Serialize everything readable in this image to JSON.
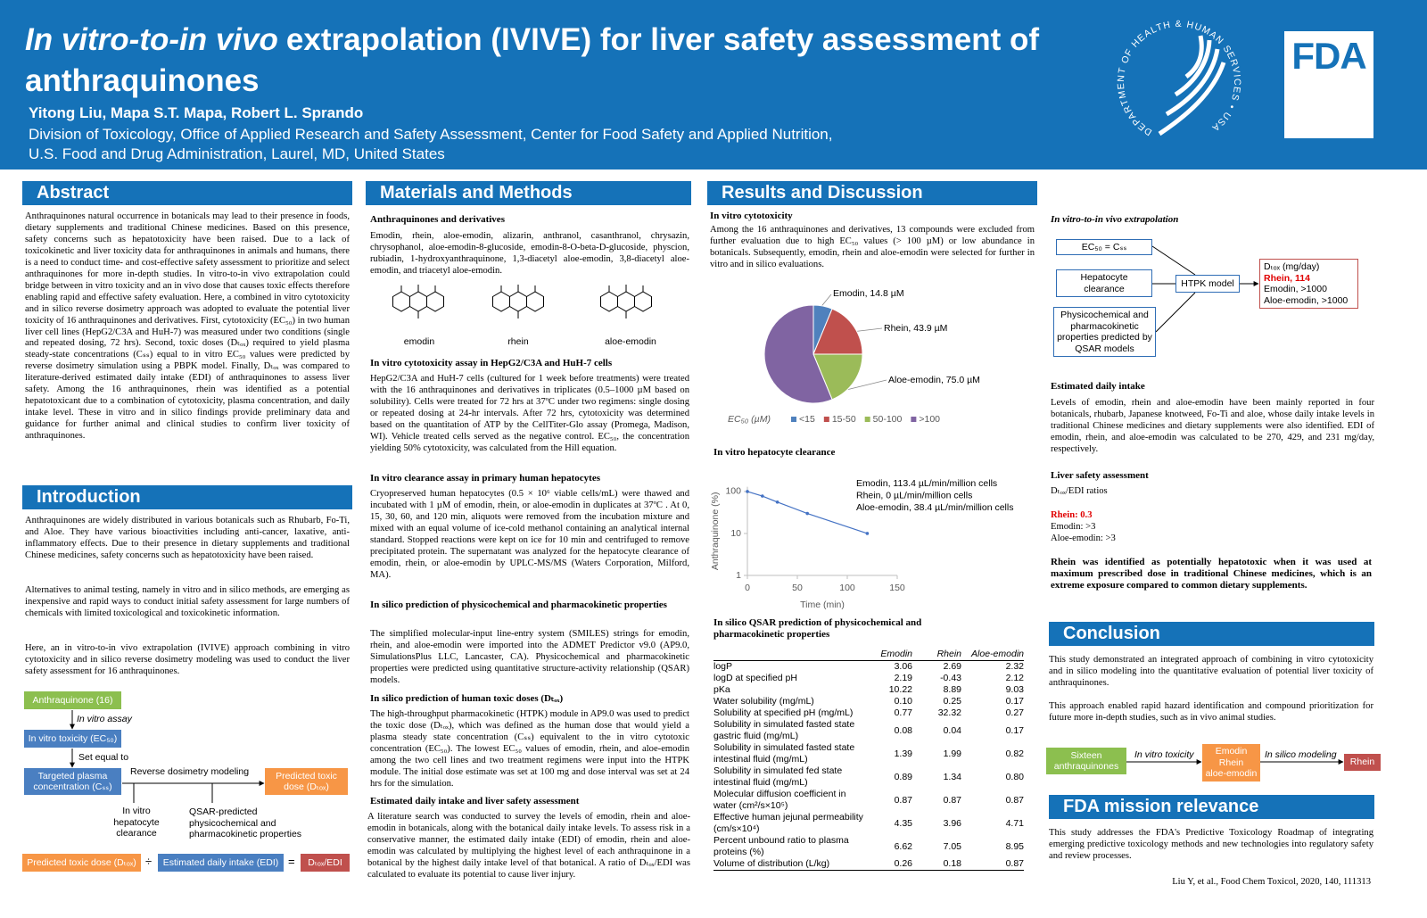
{
  "header": {
    "title_italic": "In vitro-to-in vivo",
    "title_rest": "extrapolation (IVIVE) for liver safety assessment of anthraquinones",
    "authors": "Yitong Liu, Mapa S.T. Mapa, Robert L. Sprando",
    "affiliation": [
      "Division of Toxicology, Office of Applied Research and Safety Assessment, Center for Food Safety and Applied Nutrition,",
      "U.S. Food and Drug Administration, Laurel, MD, United States"
    ],
    "seal_text": "DEPARTMENT OF HEALTH & HUMAN SERVICES • USA",
    "logo": "FDA"
  },
  "abstract": {
    "heading": "Abstract",
    "text": "Anthraquinones natural occurrence in botanicals may lead to their presence in foods, dietary supplements and traditional Chinese medicines. Based on this presence, safety concerns such as hepatotoxicity have been raised. Due to a lack of toxicokinetic and liver toxicity data for anthraquinones in animals and humans, there is a need to conduct time- and cost-effective safety assessment to prioritize and select anthraquinones for more in-depth studies. In vitro-to-in vivo extrapolation could bridge between in vitro toxicity and an in vivo dose that causes toxic effects therefore enabling rapid and effective safety evaluation. Here, a combined in vitro cytotoxicity and in silico reverse dosimetry approach was adopted to evaluate the potential liver toxicity of 16 anthraquinones and derivatives. First, cytotoxicity (EC₅₀) in two human liver cell lines (HepG2/C3A and HuH-7) was measured under two conditions (single and repeated dosing, 72 hrs). Second, toxic doses (Dₜₒₓ) required to yield plasma steady-state concentrations (Cₛₛ) equal to in vitro EC₅₀ values were predicted by reverse dosimetry simulation using a PBPK model. Finally, Dₜₒₓ was compared to literature-derived estimated daily intake (EDI) of anthraquinones to assess liver safety. Among the 16 anthraquinones, rhein was identified as a potential hepatotoxicant due to a combination of cytotoxicity, plasma concentration, and daily intake level. These in vitro and in silico findings provide preliminary data and guidance for further animal and clinical studies to confirm liver toxicity of anthraquinones."
  },
  "introduction": {
    "heading": "Introduction",
    "paragraphs": [
      "Anthraquinones are widely distributed in various botanicals such as Rhubarb, Fo-Ti, and Aloe. They have various bioactivities including anti-cancer, laxative, anti-inflammatory effects. Due to their presence in dietary supplements and traditional Chinese medicines, safety concerns such as hepatotoxicity have been raised.",
      "Alternatives to animal testing, namely in vitro and in silico methods, are emerging as inexpensive and rapid ways to conduct initial safety assessment for large numbers of chemicals with limited toxicological and toxicokinetic information.",
      "Here, an in vitro-to-in vivo extrapolation (IVIVE) approach combining in vitro cytotoxicity and in silico reverse dosimetry modeling was used to conduct the liver safety assessment for 16 anthraquinones."
    ]
  },
  "approach_diagram": {
    "anthraquinone": "Anthraquinone (16)",
    "in_vitro_assay": "In vitro assay",
    "in_vitro_toxicity": "In vitro toxicity (EC₅₀)",
    "set_equal_to": "Set equal to",
    "targeted_plasma": "Targeted plasma concentration (Cₛₛ)",
    "reverse_dosimetry": "Reverse dosimetry modeling",
    "predicted_toxic_dose": "Predicted toxic dose (Dₜₒₓ)",
    "hepatocyte_clearance": "In vitro hepatocyte clearance",
    "qsar_properties": "QSAR-predicted physicochemical and pharmacokinetic properties",
    "equation": [
      "Predicted toxic dose (Dₜₒₓ)",
      "÷",
      "Estimated daily intake (EDI)",
      "=",
      "Dₜₒₓ/EDI"
    ]
  },
  "methods": {
    "heading": "Materials and Methods",
    "structures": [
      "emodin",
      "rhein",
      "aloe-emodin"
    ],
    "sections": [
      {
        "heading": "Anthraquinones and derivatives",
        "text": "Emodin, rhein, aloe-emodin, alizarin, anthranol, casanthranol, chrysazin, chrysophanol, aloe-emodin-8-glucoside, emodin-8-O-beta-D-glucoside, physcion, rubiadin, 1-hydroxyanthraquinone, 1,3-diacetyl aloe-emodin, 3,8-diacetyl aloe-emodin, and triacetyl aloe-emodin."
      },
      {
        "heading": "In vitro cytotoxicity assay in HepG2/C3A and HuH-7 cells",
        "text": "HepG2/C3A and HuH-7 cells (cultured for 1 week before treatments) were treated with the 16 anthraquinones and derivatives in triplicates (0.5–1000 µM based on solubility). Cells were treated for 72 hrs at 37ºC under two regimens: single dosing or repeated dosing at 24-hr intervals. After 72 hrs, cytotoxicity was determined based on the quantitation of ATP by the CellTiter-Glo assay (Promega, Madison, WI). Vehicle treated cells served as the negative control. EC₅₀, the concentration yielding 50% cytotoxicity, was calculated from the Hill equation."
      },
      {
        "heading": "In vitro clearance assay in primary human hepatocytes",
        "text": "Cryopreserved human hepatocytes (0.5 × 10⁶ viable cells/mL) were thawed and incubated with 1 µM of emodin, rhein, or aloe-emodin in duplicates at 37ºC . At 0, 15, 30, 60, and 120 min, aliquots were removed from the incubation mixture and mixed with an equal volume of ice-cold methanol containing an analytical internal standard. Stopped reactions were kept on ice for 10 min and centrifuged to remove precipitated protein. The supernatant was analyzed for the hepatocyte clearance of emodin, rhein, or aloe-emodin by UPLC-MS/MS (Waters Corporation, Milford, MA)."
      },
      {
        "heading": "In silico prediction of physicochemical and pharmacokinetic properties",
        "text": "The simplified molecular-input line-entry system (SMILES) strings for emodin, rhein, and aloe-emodin were imported into the ADMET Predictor v9.0 (AP9.0, SimulationsPlus LLC, Lancaster, CA). Physicochemical and pharmacokinetic properties were predicted using quantitative structure-activity relationship (QSAR) models."
      },
      {
        "heading": "In silico prediction of human toxic doses (Dₜₒₓ)",
        "text": "The high-throughput pharmacokinetic (HTPK) module in AP9.0 was used to predict the toxic dose (Dₜₒₓ), which was defined as the human dose that would yield a plasma steady state concentration (Cₛₛ) equivalent to the in vitro cytotoxic concentration (EC₅₀). The lowest EC₅₀ values of emodin, rhein, and aloe-emodin among the two cell lines and two treatment regimens were input into the HTPK module. The initial dose estimate was set at 100 mg and dose interval was set at 24 hrs for the simulation."
      },
      {
        "heading": "Estimated daily intake and liver safety assessment",
        "text": "A literature search was conducted to survey the levels of emodin, rhein and aloe-emodin in botanicals, along with the botanical daily intake levels. To assess risk in a conservative manner, the estimated daily intake (EDI) of emodin, rhein and aloe-emodin was calculated by multiplying the highest level of each anthraquinone in a botanical by the highest daily intake level of that botanical. A ratio of Dₜₒₓ/EDI was calculated to evaluate its potential to cause liver injury."
      }
    ]
  },
  "results": {
    "heading": "Results and Discussion",
    "cytotoxicity": {
      "heading": "In vitro cytotoxicity",
      "text": "Among the 16 anthraquinones and derivatives, 13 compounds were excluded from further evaluation due to high EC₅₀ values (> 100 µM) or low abundance in botanicals. Subsequently, emodin, rhein and aloe-emodin were selected for further in vitro and in silico evaluations."
    },
    "clearance_heading": "In vitro hepatocyte clearance",
    "qsar_heading": "In silico QSAR prediction of physicochemical and pharmacokinetic properties",
    "table": {
      "columns": [
        "Emodin",
        "Rhein",
        "Aloe-emodin"
      ],
      "rows": [
        {
          "label": "logP",
          "values": [
            "3.06",
            "2.69",
            "2.32"
          ]
        },
        {
          "label": "logD at specified pH",
          "values": [
            "2.19",
            "-0.43",
            "2.12"
          ]
        },
        {
          "label": "pKa",
          "values": [
            "10.22",
            "8.89",
            "9.03"
          ]
        },
        {
          "label": "Water solubility (mg/mL)",
          "values": [
            "0.10",
            "0.25",
            "0.17"
          ]
        },
        {
          "label": "Solubility at specified pH (mg/mL)",
          "values": [
            "0.77",
            "32.32",
            "0.27"
          ]
        },
        {
          "label": "Solubility in simulated fasted state gastric fluid (mg/mL)",
          "values": [
            "0.08",
            "0.04",
            "0.17"
          ]
        },
        {
          "label": "Solubility in simulated fasted state intestinal fluid (mg/mL)",
          "values": [
            "1.39",
            "1.99",
            "0.82"
          ]
        },
        {
          "label": "Solubility in simulated fed state intestinal fluid (mg/mL)",
          "values": [
            "0.89",
            "1.34",
            "0.80"
          ]
        },
        {
          "label": "Molecular diffusion coefficient in water (cm²/s×10⁵)",
          "values": [
            "0.87",
            "0.87",
            "0.87"
          ]
        },
        {
          "label": "Effective human jejunal permeability (cm/s×10⁴)",
          "values": [
            "4.35",
            "3.96",
            "4.71"
          ]
        },
        {
          "label": "Percent unbound ratio to plasma proteins (%)",
          "values": [
            "6.62",
            "7.05",
            "8.95"
          ]
        },
        {
          "label": "Volume of distribution (L/kg)",
          "values": [
            "0.26",
            "0.18",
            "0.87"
          ]
        }
      ]
    }
  },
  "chart_data": [
    {
      "type": "pie",
      "legend_title": "EC₅₀ (µM)",
      "categories": [
        "<15",
        "15-50",
        "50-100",
        ">100"
      ],
      "values": [
        1,
        3,
        3,
        9
      ],
      "colors": [
        "#4f81bd",
        "#c0504d",
        "#9bbb59",
        "#8064a2"
      ],
      "annotations": [
        "Emodin, 14.8 µM",
        "Rhein, 43.9 µM",
        "Aloe-emodin, 75.0 µM"
      ]
    },
    {
      "type": "line",
      "x": [
        0,
        15,
        30,
        60,
        120
      ],
      "values": [
        100,
        78,
        56,
        30,
        10
      ],
      "color": "#4472c4",
      "xlim": [
        0,
        150
      ],
      "ylim": [
        1,
        130
      ],
      "xticks": [
        0,
        50,
        100,
        150
      ],
      "yticks": [
        1,
        10,
        100
      ],
      "log_y": true,
      "xlabel": "Time (min)",
      "ylabel": "Anthraquinone (%)",
      "annotations": [
        "Emodin, 113.4 µL/min/million cells",
        "Rhein, 0 µL/min/million cells",
        "Aloe-emodin, 38.4 µL/min/million cells"
      ]
    }
  ],
  "ivive": {
    "heading": "In vitro-to-in vivo extrapolation",
    "ec50_css": "EC₅₀ = Cₛₛ",
    "hepatocyte_clearance": "Hepatocyte clearance",
    "qsar_properties": "Physicochemical and pharmacokinetic properties predicted by QSAR models",
    "htpk_model": "HTPK model",
    "output": [
      "Dₜₒₓ (mg/day)",
      "Rhein, 114",
      "Emodin, >1000",
      "Aloe-emodin, >1000"
    ]
  },
  "daily_intake": {
    "heading": "Estimated daily intake",
    "text": "Levels of emodin, rhein and aloe-emodin have been mainly reported in four botanicals, rhubarb, Japanese knotweed, Fo-Ti and aloe, whose daily intake levels in traditional Chinese medicines and dietary supplements were also identified. EDI of emodin, rhein, and aloe-emodin was calculated to be 270, 429, and 231 mg/day, respectively."
  },
  "liver_safety": {
    "heading": "Liver safety assessment",
    "ratio_title": "Dₜₒₓ/EDI ratios",
    "ratios": [
      "Rhein: 0.3",
      "Emodin: >3",
      "Aloe-emodin: >3"
    ],
    "finding": "Rhein was identified as potentially hepatotoxic when it was used at maximum prescribed dose in traditional Chinese medicines, which is an extreme exposure compared to common dietary supplements."
  },
  "conclusion": {
    "heading": "Conclusion",
    "paragraphs": [
      "This study demonstrated an integrated approach of combining in vitro cytotoxicity and in silico modeling into the quantitative evaluation of potential liver toxicity of anthraquinones.",
      "This approach enabled rapid hazard identification and compound prioritization for future more in-depth studies, such as in vivo animal studies."
    ],
    "flow": {
      "input": "Sixteen anthraquinones",
      "step1": "In vitro toxicity",
      "candidates": [
        "Emodin",
        "Rhein",
        "aloe-emodin"
      ],
      "step2": "In silico modeling",
      "result": "Rhein"
    }
  },
  "mission": {
    "heading": "FDA mission relevance",
    "text": "This study addresses the FDA's Predictive Toxicology Roadmap of integrating emerging predictive toxicology methods and new technologies into regulatory safety and review processes."
  },
  "citation": "Liu Y, et al., Food Chem Toxicol, 2020, 140, 111313"
}
